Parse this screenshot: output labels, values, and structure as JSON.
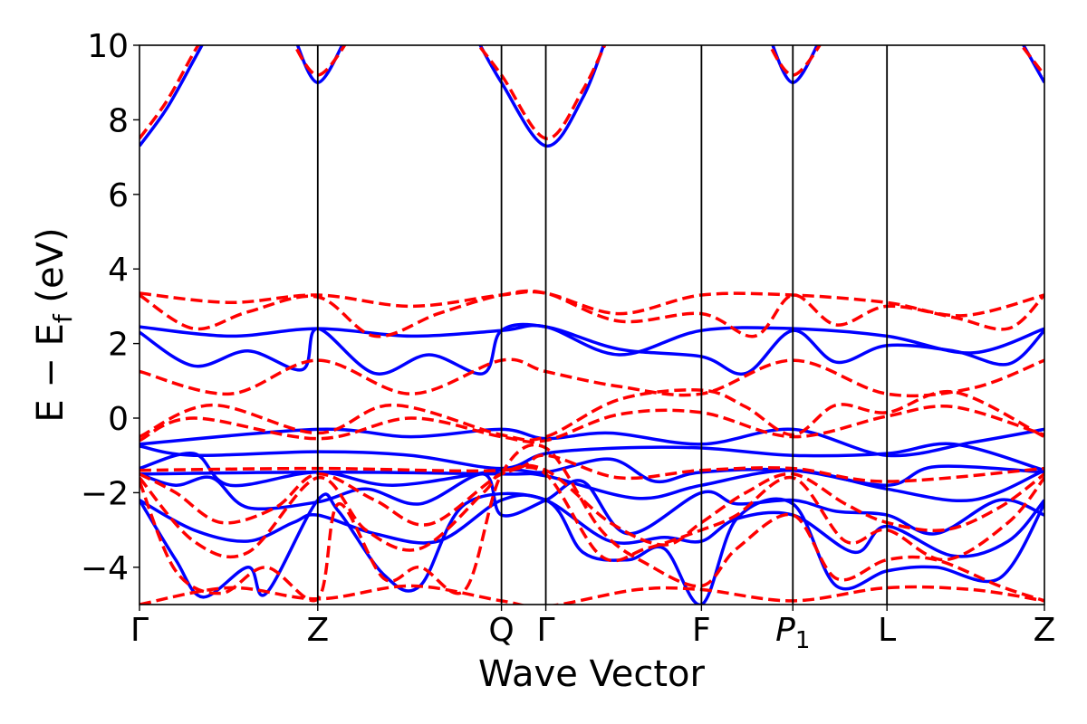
{
  "chart_data": {
    "type": "line",
    "title": "",
    "xlabel": "Wave Vector",
    "ylabel_main": "E − E",
    "ylabel_sub": "f",
    "ylabel_unit": " (eV)",
    "ylim": [
      -5,
      10
    ],
    "xlim": [
      0,
      1
    ],
    "grid": false,
    "legend": "none",
    "yticks": [
      {
        "value": -4,
        "label": "−4"
      },
      {
        "value": -2,
        "label": "−2"
      },
      {
        "value": 0,
        "label": "0"
      },
      {
        "value": 2,
        "label": "2"
      },
      {
        "value": 4,
        "label": "4"
      },
      {
        "value": 6,
        "label": "6"
      },
      {
        "value": 8,
        "label": "8"
      },
      {
        "value": 10,
        "label": "10"
      }
    ],
    "kpoints": [
      {
        "label": "Γ",
        "sub": "",
        "italic": false,
        "x": 0.0
      },
      {
        "label": "Z",
        "sub": "",
        "italic": false,
        "x": 0.197
      },
      {
        "label": "Q",
        "sub": "",
        "italic": false,
        "x": 0.4
      },
      {
        "label": "Γ",
        "sub": "",
        "italic": false,
        "x": 0.449
      },
      {
        "label": "F",
        "sub": "",
        "italic": false,
        "x": 0.621
      },
      {
        "label": "P",
        "sub": "1",
        "italic": true,
        "x": 0.722
      },
      {
        "label": "L",
        "sub": "",
        "italic": false,
        "x": 0.826
      },
      {
        "label": "Z",
        "sub": "",
        "italic": false,
        "x": 1.0
      }
    ],
    "colors": {
      "series_a": "#0000ff",
      "series_b": "#ff0000"
    },
    "series": [
      {
        "style": "solid",
        "color": "#0000ff",
        "bands": [
          {
            "x": [
              0,
              0.03,
              0.06,
              0.08
            ],
            "y": [
              7.3,
              8.3,
              9.6,
              10.5
            ]
          },
          {
            "x": [
              0.17,
              0.197,
              0.23
            ],
            "y": [
              10.3,
              9.0,
              10.3
            ]
          },
          {
            "x": [
              0.37,
              0.4,
              0.449,
              0.49,
              0.52
            ],
            "y": [
              10.3,
              9.0,
              7.3,
              8.6,
              10.5
            ]
          },
          {
            "x": [
              0.695,
              0.722,
              0.755
            ],
            "y": [
              10.3,
              9.0,
              10.3
            ]
          },
          {
            "x": [
              0.97,
              1.0
            ],
            "y": [
              10.3,
              9.0
            ]
          },
          {
            "x": [
              0,
              0.1,
              0.197,
              0.3,
              0.4,
              0.449,
              0.53,
              0.621,
              0.722,
              0.826,
              0.92,
              1.0
            ],
            "y": [
              2.45,
              2.2,
              2.4,
              2.2,
              2.35,
              2.45,
              1.7,
              2.35,
              2.4,
              2.2,
              1.75,
              2.4
            ]
          },
          {
            "x": [
              0,
              0.06,
              0.12,
              0.18,
              0.197,
              0.26,
              0.32,
              0.38,
              0.4,
              0.449,
              0.53,
              0.621,
              0.67,
              0.722,
              0.77,
              0.826,
              0.9,
              0.96,
              1.0
            ],
            "y": [
              2.3,
              1.4,
              1.8,
              1.3,
              2.4,
              1.2,
              1.7,
              1.2,
              2.35,
              2.45,
              1.85,
              1.65,
              1.2,
              2.35,
              1.5,
              1.95,
              1.8,
              1.45,
              2.35
            ]
          },
          {
            "x": [
              0,
              0.197,
              0.3,
              0.4,
              0.449,
              0.52,
              0.621,
              0.722,
              0.826,
              0.92,
              1.0
            ],
            "y": [
              -0.7,
              -0.3,
              -0.5,
              -0.3,
              -0.55,
              -0.4,
              -0.7,
              -0.3,
              -1.0,
              -0.65,
              -0.3
            ]
          },
          {
            "x": [
              0,
              0.06,
              0.197,
              0.3,
              0.4,
              0.449,
              0.53,
              0.621,
              0.722,
              0.826,
              0.9,
              1.0
            ],
            "y": [
              -0.75,
              -1.0,
              -0.9,
              -1.0,
              -1.35,
              -0.95,
              -0.8,
              -0.8,
              -1.0,
              -0.95,
              -0.7,
              -1.4
            ]
          },
          {
            "x": [
              0,
              0.06,
              0.1,
              0.197,
              0.28,
              0.4,
              0.449,
              0.52,
              0.57,
              0.621,
              0.722,
              0.826,
              0.88,
              1.0
            ],
            "y": [
              -1.35,
              -0.95,
              -1.8,
              -1.45,
              -1.8,
              -1.4,
              -1.45,
              -1.1,
              -1.7,
              -1.45,
              -1.4,
              -1.8,
              -1.3,
              -1.45
            ]
          },
          {
            "x": [
              0,
              0.197,
              0.4,
              0.449,
              0.55,
              0.621,
              0.722,
              0.826,
              0.92,
              1.0
            ],
            "y": [
              -1.5,
              -1.45,
              -1.5,
              -1.55,
              -2.15,
              -1.8,
              -1.4,
              -1.9,
              -2.2,
              -1.4
            ]
          },
          {
            "x": [
              0,
              0.04,
              0.08,
              0.12,
              0.197,
              0.25,
              0.31,
              0.38,
              0.4,
              0.449,
              0.49,
              0.54,
              0.621,
              0.66,
              0.722,
              0.77,
              0.826,
              0.88,
              0.95,
              1.0
            ],
            "y": [
              -1.5,
              -1.8,
              -1.6,
              -2.4,
              -2.25,
              -1.9,
              -2.3,
              -1.5,
              -2.6,
              -2.2,
              -1.7,
              -3.1,
              -2.0,
              -2.3,
              -2.2,
              -2.5,
              -2.6,
              -3.1,
              -2.2,
              -2.6
            ]
          },
          {
            "x": [
              0,
              0.06,
              0.12,
              0.17,
              0.197,
              0.26,
              0.33,
              0.4,
              0.449,
              0.52,
              0.58,
              0.621,
              0.66,
              0.722,
              0.79,
              0.826,
              0.9,
              0.96,
              1.0
            ],
            "y": [
              -2.2,
              -3.0,
              -3.3,
              -2.8,
              -2.6,
              -3.1,
              -3.3,
              -2.2,
              -2.2,
              -3.3,
              -3.2,
              -3.3,
              -2.7,
              -2.6,
              -3.6,
              -2.9,
              -3.7,
              -3.3,
              -2.2
            ]
          },
          {
            "x": [
              0,
              0.04,
              0.07,
              0.12,
              0.14,
              0.197,
              0.22,
              0.27,
              0.31,
              0.36,
              0.449,
              0.49,
              0.54,
              0.58,
              0.621,
              0.66,
              0.722,
              0.77,
              0.826,
              0.88,
              0.95,
              1.0
            ],
            "y": [
              -2.2,
              -3.8,
              -4.8,
              -4.0,
              -4.7,
              -2.2,
              -2.5,
              -4.2,
              -4.5,
              -2.3,
              -2.2,
              -3.6,
              -3.8,
              -3.5,
              -5.0,
              -2.7,
              -2.3,
              -4.5,
              -4.1,
              -4.0,
              -4.3,
              -2.3
            ]
          }
        ]
      },
      {
        "style": "dashed",
        "color": "#ff0000",
        "bands": [
          {
            "x": [
              0,
              0.03,
              0.06,
              0.08
            ],
            "y": [
              7.5,
              8.5,
              9.8,
              10.6
            ]
          },
          {
            "x": [
              0.165,
              0.197,
              0.235
            ],
            "y": [
              10.3,
              9.2,
              10.3
            ]
          },
          {
            "x": [
              0.365,
              0.4,
              0.449,
              0.49,
              0.525
            ],
            "y": [
              10.3,
              9.2,
              7.5,
              8.8,
              10.6
            ]
          },
          {
            "x": [
              0.69,
              0.722,
              0.76
            ],
            "y": [
              10.3,
              9.2,
              10.3
            ]
          },
          {
            "x": [
              0.965,
              1.0
            ],
            "y": [
              10.3,
              9.2
            ]
          },
          {
            "x": [
              0,
              0.1,
              0.197,
              0.3,
              0.4,
              0.449,
              0.53,
              0.621,
              0.722,
              0.826,
              0.91,
              1.0
            ],
            "y": [
              3.35,
              3.1,
              3.3,
              3.0,
              3.3,
              3.35,
              2.8,
              3.3,
              3.3,
              3.1,
              2.75,
              3.3
            ]
          },
          {
            "x": [
              0,
              0.06,
              0.12,
              0.197,
              0.26,
              0.33,
              0.4,
              0.449,
              0.53,
              0.621,
              0.68,
              0.722,
              0.77,
              0.826,
              0.9,
              0.96,
              1.0
            ],
            "y": [
              3.3,
              2.4,
              2.85,
              3.25,
              2.2,
              2.8,
              3.3,
              3.35,
              2.6,
              2.8,
              2.2,
              3.3,
              2.5,
              3.0,
              2.7,
              2.4,
              3.3
            ]
          },
          {
            "x": [
              0,
              0.1,
              0.197,
              0.3,
              0.4,
              0.449,
              0.53,
              0.621,
              0.722,
              0.826,
              0.92,
              1.0
            ],
            "y": [
              1.25,
              0.65,
              1.55,
              0.65,
              1.55,
              1.25,
              0.85,
              0.65,
              1.55,
              0.65,
              0.8,
              1.55
            ]
          },
          {
            "x": [
              0,
              0.08,
              0.197,
              0.28,
              0.4,
              0.449,
              0.53,
              0.621,
              0.67,
              0.722,
              0.77,
              0.826,
              0.9,
              1.0
            ],
            "y": [
              -0.5,
              0.35,
              -0.4,
              0.35,
              -0.45,
              -0.5,
              0.5,
              0.75,
              0.3,
              -0.45,
              0.35,
              0.15,
              0.7,
              -0.5
            ]
          },
          {
            "x": [
              0,
              0.06,
              0.197,
              0.3,
              0.4,
              0.449,
              0.53,
              0.621,
              0.722,
              0.826,
              0.9,
              1.0
            ],
            "y": [
              -0.6,
              0.0,
              -0.55,
              0.0,
              -0.5,
              -0.6,
              0.1,
              0.15,
              -0.5,
              0.05,
              0.3,
              -0.45
            ]
          },
          {
            "x": [
              0,
              0.197,
              0.4,
              0.449,
              0.53,
              0.621,
              0.722,
              0.826,
              1.0
            ],
            "y": [
              -1.4,
              -1.35,
              -1.4,
              -1.0,
              -1.6,
              -1.4,
              -1.35,
              -1.7,
              -1.35
            ]
          },
          {
            "x": [
              0,
              0.04,
              0.09,
              0.15,
              0.197,
              0.26,
              0.32,
              0.4,
              0.449,
              0.52,
              0.58,
              0.621,
              0.67,
              0.722,
              0.78,
              0.826,
              0.89,
              0.95,
              1.0
            ],
            "y": [
              -1.5,
              -2.0,
              -2.8,
              -2.4,
              -1.5,
              -2.2,
              -2.85,
              -1.5,
              -1.4,
              -2.8,
              -3.4,
              -2.8,
              -2.0,
              -1.5,
              -2.3,
              -2.8,
              -3.0,
              -2.4,
              -1.5
            ]
          },
          {
            "x": [
              0,
              0.06,
              0.12,
              0.197,
              0.25,
              0.31,
              0.38,
              0.4,
              0.449,
              0.51,
              0.56,
              0.621,
              0.66,
              0.722,
              0.78,
              0.826,
              0.89,
              0.96,
              1.0
            ],
            "y": [
              -1.6,
              -3.3,
              -3.6,
              -1.6,
              -3.0,
              -3.5,
              -2.0,
              -1.5,
              -1.5,
              -3.7,
              -3.5,
              -3.0,
              -2.6,
              -1.6,
              -3.3,
              -3.0,
              -3.8,
              -2.8,
              -1.6
            ]
          },
          {
            "x": [
              0,
              0.04,
              0.09,
              0.14,
              0.197,
              0.22,
              0.27,
              0.31,
              0.36,
              0.4,
              0.449,
              0.51,
              0.56,
              0.621,
              0.66,
              0.722,
              0.77,
              0.826,
              0.88,
              0.95,
              1.0
            ],
            "y": [
              -1.7,
              -4.1,
              -4.7,
              -4.0,
              -4.85,
              -2.3,
              -4.3,
              -4.0,
              -4.6,
              -1.5,
              -0.8,
              -3.0,
              -3.9,
              -4.5,
              -3.5,
              -2.6,
              -4.3,
              -3.8,
              -3.8,
              -4.5,
              -4.9
            ]
          },
          {
            "x": [
              0,
              0.1,
              0.197,
              0.3,
              0.4,
              0.449,
              0.55,
              0.621,
              0.722,
              0.826,
              0.92,
              1.0
            ],
            "y": [
              -5.0,
              -4.55,
              -4.85,
              -4.5,
              -4.9,
              -5.05,
              -4.6,
              -4.6,
              -4.9,
              -4.55,
              -4.6,
              -4.9
            ]
          }
        ]
      }
    ]
  }
}
